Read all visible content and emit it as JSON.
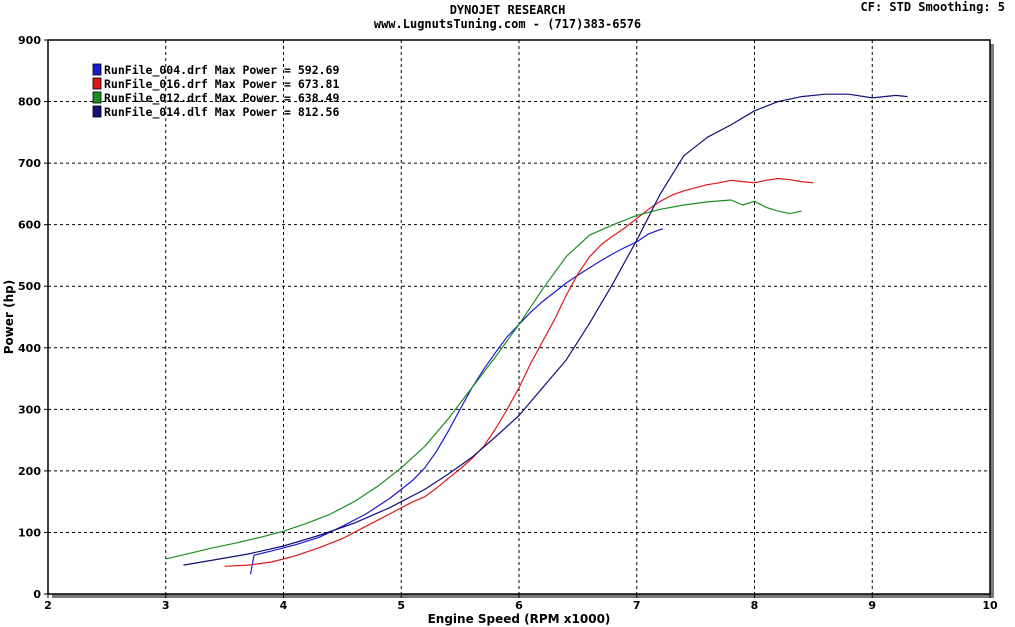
{
  "header": {
    "title": "DYNOJET RESEARCH",
    "subtitle": "www.LugnutsTuning.com - (717)383-6576",
    "info": "CF: STD  Smoothing: 5"
  },
  "chart_data": {
    "type": "line",
    "xlabel": "Engine Speed (RPM x1000)",
    "ylabel": "Power (hp)",
    "xlim": [
      2,
      10
    ],
    "ylim": [
      0,
      900
    ],
    "xticks": [
      2,
      3,
      4,
      5,
      6,
      7,
      8,
      9,
      10
    ],
    "yticks": [
      0,
      100,
      200,
      300,
      400,
      500,
      600,
      700,
      800,
      900
    ],
    "grid": true,
    "legend_position": "top-left",
    "series": [
      {
        "name": "RunFile_004.drf Max Power = 592.69",
        "color": "#1a1ad0",
        "x": [
          3.72,
          3.75,
          3.9,
          4.1,
          4.3,
          4.5,
          4.7,
          4.9,
          5.1,
          5.2,
          5.3,
          5.4,
          5.5,
          5.6,
          5.7,
          5.8,
          5.9,
          6.0,
          6.1,
          6.2,
          6.3,
          6.4,
          6.5,
          6.6,
          6.7,
          6.8,
          6.9,
          7.0,
          7.1,
          7.2,
          7.22
        ],
        "y": [
          32,
          63,
          70,
          80,
          92,
          110,
          130,
          155,
          185,
          205,
          232,
          265,
          300,
          335,
          365,
          392,
          418,
          438,
          458,
          475,
          490,
          505,
          518,
          530,
          542,
          553,
          563,
          572,
          585,
          592,
          593
        ]
      },
      {
        "name": "RunFile_016.drf Max Power = 673.81",
        "color": "#e01818",
        "x": [
          3.5,
          3.7,
          3.9,
          4.1,
          4.3,
          4.5,
          4.7,
          4.9,
          5.1,
          5.2,
          5.3,
          5.4,
          5.5,
          5.6,
          5.7,
          5.8,
          5.9,
          6.0,
          6.1,
          6.2,
          6.3,
          6.4,
          6.5,
          6.6,
          6.7,
          6.8,
          6.9,
          7.0,
          7.1,
          7.2,
          7.3,
          7.4,
          7.5,
          7.6,
          7.7,
          7.8,
          7.9,
          8.0,
          8.1,
          8.2,
          8.3,
          8.4,
          8.5
        ],
        "y": [
          45,
          47,
          52,
          62,
          75,
          90,
          110,
          130,
          150,
          158,
          172,
          188,
          203,
          220,
          240,
          268,
          300,
          335,
          375,
          410,
          445,
          485,
          520,
          548,
          568,
          582,
          595,
          610,
          625,
          638,
          648,
          655,
          660,
          665,
          668,
          672,
          670,
          668,
          672,
          675,
          673,
          670,
          668
        ]
      },
      {
        "name": "RunFile_012.drf Max Power = 638.49",
        "color": "#18901e",
        "x": [
          3.0,
          3.2,
          3.4,
          3.6,
          3.8,
          4.0,
          4.2,
          4.4,
          4.6,
          4.8,
          5.0,
          5.2,
          5.4,
          5.6,
          5.8,
          6.0,
          6.2,
          6.4,
          6.6,
          6.8,
          7.0,
          7.2,
          7.4,
          7.6,
          7.8,
          7.9,
          8.0,
          8.1,
          8.2,
          8.3,
          8.4
        ],
        "y": [
          57,
          66,
          75,
          83,
          92,
          102,
          115,
          130,
          150,
          175,
          205,
          240,
          285,
          335,
          385,
          438,
          495,
          548,
          583,
          600,
          615,
          625,
          632,
          637,
          640,
          632,
          638,
          628,
          622,
          618,
          622
        ]
      },
      {
        "name": "RunFile_014.dlf Max Power = 812.56",
        "color": "#10107a",
        "x": [
          3.15,
          3.4,
          3.7,
          4.0,
          4.3,
          4.6,
          4.9,
          5.2,
          5.4,
          5.6,
          5.8,
          6.0,
          6.2,
          6.4,
          6.6,
          6.8,
          7.0,
          7.2,
          7.4,
          7.6,
          7.8,
          8.0,
          8.2,
          8.4,
          8.6,
          8.8,
          9.0,
          9.2,
          9.3
        ],
        "y": [
          47,
          55,
          65,
          78,
          95,
          115,
          140,
          170,
          195,
          222,
          255,
          290,
          335,
          380,
          440,
          505,
          575,
          650,
          712,
          742,
          762,
          785,
          800,
          808,
          812,
          812,
          806,
          810,
          808
        ]
      }
    ]
  }
}
